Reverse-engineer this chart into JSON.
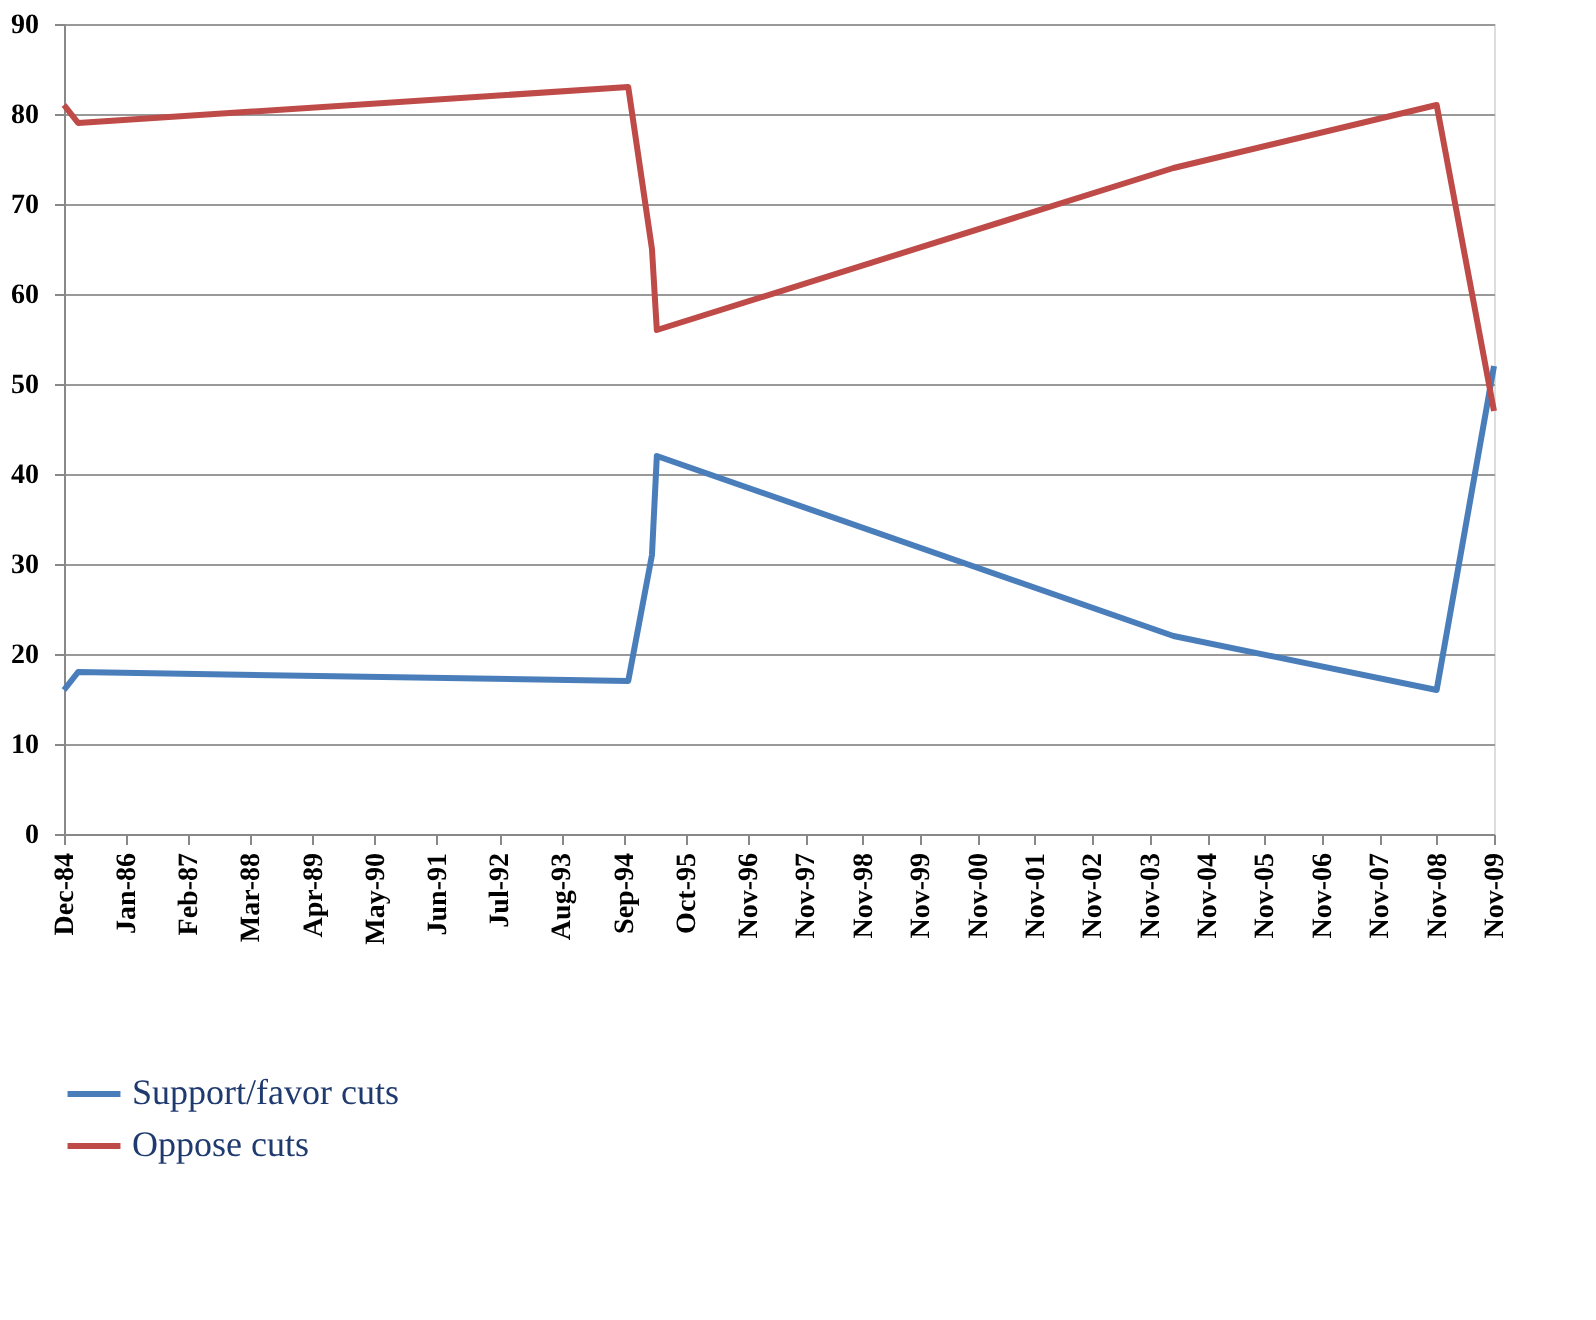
{
  "chart_data": {
    "type": "line",
    "x": [
      "1984-12",
      "1985-03",
      "1994-10",
      "1995-03",
      "1995-04",
      "2004-04",
      "2008-11",
      "2009-11"
    ],
    "series": [
      {
        "name": "Support/favor cuts",
        "color": "#4a7ebb",
        "values": [
          16,
          18,
          17,
          31,
          42,
          22,
          16,
          52
        ]
      },
      {
        "name": "Oppose cuts",
        "color": "#be4b48",
        "values": [
          81,
          79,
          83,
          65,
          56,
          74,
          81,
          47
        ]
      }
    ],
    "xlim": [
      "1984-12",
      "2009-11"
    ],
    "xticks": [
      {
        "value": "1984-12",
        "label": "Dec-84"
      },
      {
        "value": "1986-01",
        "label": "Jan-86"
      },
      {
        "value": "1987-02",
        "label": "Feb-87"
      },
      {
        "value": "1988-03",
        "label": "Mar-88"
      },
      {
        "value": "1989-04",
        "label": "Apr-89"
      },
      {
        "value": "1990-05",
        "label": "May-90"
      },
      {
        "value": "1991-06",
        "label": "Jun-91"
      },
      {
        "value": "1992-07",
        "label": "Jul-92"
      },
      {
        "value": "1993-08",
        "label": "Aug-93"
      },
      {
        "value": "1994-09",
        "label": "Sep-94"
      },
      {
        "value": "1995-10",
        "label": "Oct-95"
      },
      {
        "value": "1996-11",
        "label": "Nov-96"
      },
      {
        "value": "1997-11",
        "label": "Nov-97"
      },
      {
        "value": "1998-11",
        "label": "Nov-98"
      },
      {
        "value": "1999-11",
        "label": "Nov-99"
      },
      {
        "value": "2000-11",
        "label": "Nov-00"
      },
      {
        "value": "2001-11",
        "label": "Nov-01"
      },
      {
        "value": "2002-11",
        "label": "Nov-02"
      },
      {
        "value": "2003-11",
        "label": "Nov-03"
      },
      {
        "value": "2004-11",
        "label": "Nov-04"
      },
      {
        "value": "2005-11",
        "label": "Nov-05"
      },
      {
        "value": "2006-11",
        "label": "Nov-06"
      },
      {
        "value": "2007-11",
        "label": "Nov-07"
      },
      {
        "value": "2008-11",
        "label": "Nov-08"
      },
      {
        "value": "2009-11",
        "label": "Nov-09"
      }
    ],
    "ylim": [
      0,
      90
    ],
    "yticks": [
      0,
      10,
      20,
      30,
      40,
      50,
      60,
      70,
      80,
      90
    ],
    "grid": "y",
    "legend": "bottom",
    "marker": "none",
    "line_style": "solid"
  }
}
